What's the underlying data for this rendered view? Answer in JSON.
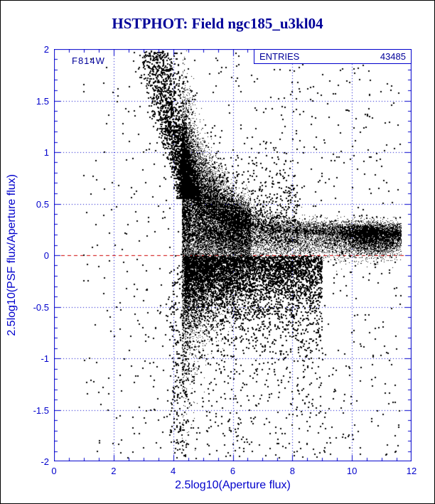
{
  "title": "HSTPHOT: Field ngc185_u3kl04",
  "annotations": {
    "filter_label": "F814W"
  },
  "stats_box": {
    "label": "ENTRIES",
    "value": "43485"
  },
  "axes": {
    "x": {
      "label": "2.5log10(Aperture flux)",
      "min": 0,
      "max": 12,
      "tick_values": [
        0,
        2,
        4,
        6,
        8,
        10,
        12
      ],
      "tick_labels": [
        "0",
        "2",
        "4",
        "6",
        "8",
        "10",
        "12"
      ],
      "minor_step": 0.5
    },
    "y": {
      "label": "2.5log10(PSF flux/Aperture flux)",
      "min": -2,
      "max": 2,
      "tick_values": [
        -2,
        -1.5,
        -1,
        -0.5,
        0,
        0.5,
        1,
        1.5,
        2
      ],
      "tick_labels": [
        "-2",
        "-1.5",
        "-1",
        "-0.5",
        "0",
        "0.5",
        "1",
        "1.5",
        "2"
      ],
      "minor_step": 0.1
    }
  },
  "grid": {
    "x_values": [
      2,
      4,
      6,
      8,
      10
    ],
    "y_values": [
      -1.5,
      -1,
      -0.5,
      0.5,
      1,
      1.5
    ]
  },
  "zero_line": {
    "y": 0
  },
  "colors": {
    "axis": "#0000cc",
    "grid": "#0000cc",
    "text": "#000099",
    "tick_text": "#0000cc",
    "points": "#000000",
    "zero_line": "#cc0000",
    "background": "#ffffff"
  },
  "chart_data": {
    "type": "scatter",
    "title": "HSTPHOT: Field ngc185_u3kl04",
    "xlabel": "2.5log10(Aperture flux)",
    "ylabel": "2.5log10(PSF flux/Aperture flux)",
    "xlim": [
      0,
      12
    ],
    "ylim": [
      -2,
      2
    ],
    "entries": 43485,
    "filter": "F814W",
    "grid": true,
    "zero_reference_line": 0,
    "legend": "none",
    "summary": "PSF-to-aperture flux ratio vs aperture flux for 43485 stars. A dense funnel-shaped cloud starts near x=4.3 with a wide vertical spread (roughly -0.8 to +1.0, ridge near +0.5) and converges with increasing flux to a tight black band at y~0.2 that extends to x~11.6. A plume of faint stars rises up-left from the cloud top toward (3.2, 2.0). A skirt of negative outliers lies below the band between x=4.5 and 9, sparse points reach y=-2, and a light uniform sprinkle of outliers covers the whole frame. A red dashed reference line marks y=0.",
    "point_generator": {
      "seed": 20,
      "components": [
        {
          "kind": "funnel",
          "n": 30000,
          "dot": 1,
          "x_min": 4.3,
          "x_max": 11.65,
          "branches": [
            {
              "w": 0.56,
              "span": 2.3,
              "exp": 1.5
            },
            {
              "w": 0.33,
              "span": 7.35,
              "exp": 1.0
            },
            {
              "w": 0.11,
              "mu": 10.6,
              "sigma": 0.55
            }
          ],
          "center_base": 0.2,
          "center_amp": 0.45,
          "center_scale": 1.0,
          "sigma_base": 0.05,
          "sigma_amp": 0.4,
          "sigma_scale": 1.3,
          "down_factor": 1.8
        },
        {
          "kind": "plume",
          "n": 2300,
          "dot": 2,
          "t_exp": 1.9,
          "y0": 0.55,
          "y_span": 1.43,
          "x0": 4.55,
          "x_slope": -1.15,
          "x_noise": 0.27
        },
        {
          "kind": "skirt",
          "n": 4200,
          "dot": 2,
          "x_min": 4.4,
          "x_span": 4.6,
          "x_exp": 1.25,
          "y_sigma": 0.3,
          "deep_frac": 0.12,
          "deep_mult": 2.3
        },
        {
          "kind": "halo",
          "n": 850,
          "dot": 2,
          "x_min": 4.4,
          "x_span": 3.8,
          "x_exp": 1.1,
          "y_offset": 0.12,
          "y_sigma": 0.42
        },
        {
          "kind": "column",
          "n": 230,
          "dot": 2,
          "x_mu": 4.2,
          "x_sigma": 0.18,
          "y_min": -1.95,
          "y_max": -0.1
        },
        {
          "kind": "deep",
          "n": 230,
          "dot": 2,
          "x_min": 4.2,
          "x_span": 4.8,
          "y_min": -1.98,
          "y_max": -0.5,
          "exp": 0.7
        },
        {
          "kind": "background",
          "n": 950,
          "dot": 2,
          "x_min": 0.9,
          "x_span": 10.75,
          "x_exp": 0.85,
          "y_min": -1.97,
          "y_max": 1.97
        }
      ]
    }
  }
}
